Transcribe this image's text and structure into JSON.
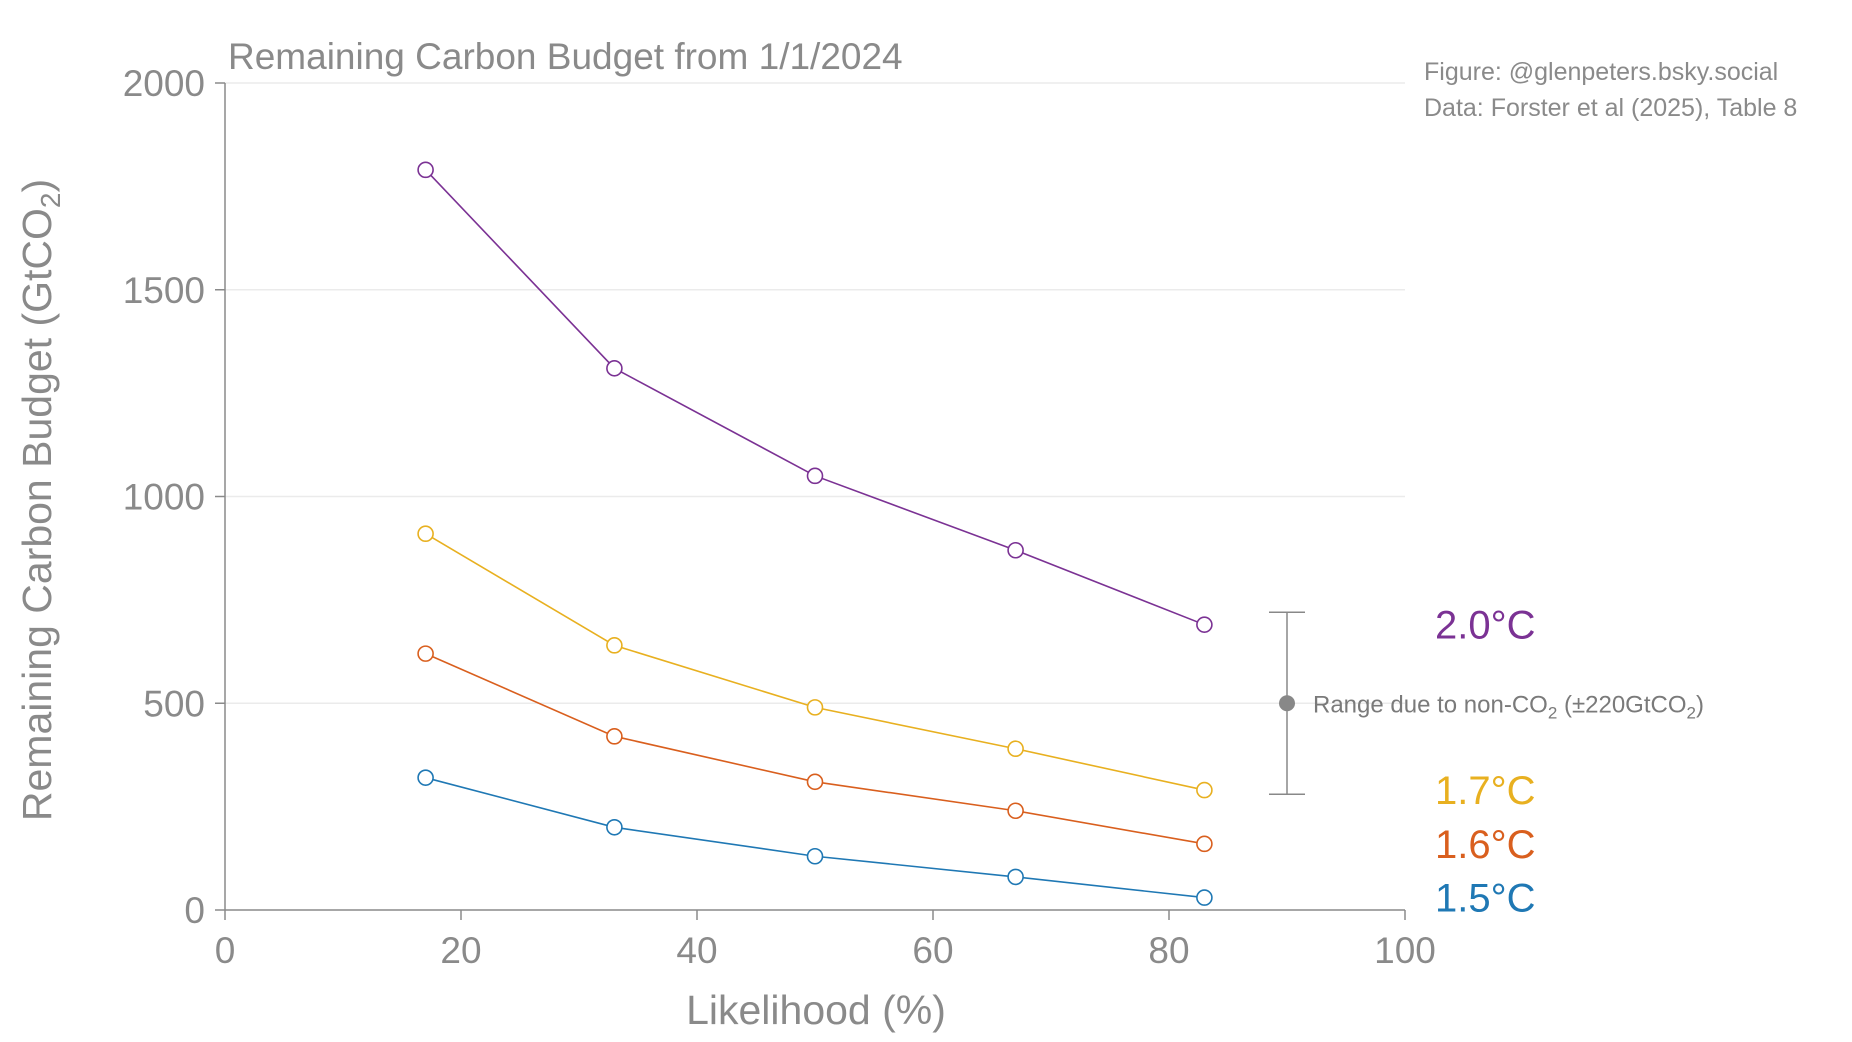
{
  "credits": {
    "figure": "Figure: @glenpeters.bsky.social",
    "data": "Data: Forster et al (2025), Table 8"
  },
  "chart_data": {
    "type": "line",
    "title": "Remaining Carbon Budget from 1/1/2024",
    "xlabel": "Likelihood (%)",
    "ylabel": {
      "main": "Remaining Carbon Budget (GtCO",
      "sub": "2",
      "close": ")"
    },
    "xlim": [
      0,
      100
    ],
    "ylim": [
      0,
      2000
    ],
    "xticks": [
      0,
      20,
      40,
      60,
      80,
      100
    ],
    "yticks": [
      0,
      500,
      1000,
      1500,
      2000
    ],
    "grid": "horizontal",
    "marker": "open-circle",
    "x": [
      17,
      33,
      50,
      67,
      83
    ],
    "series": [
      {
        "name": "2.0°C",
        "color": "#7b3294",
        "values": [
          1790,
          1310,
          1050,
          870,
          690
        ]
      },
      {
        "name": "1.7°C",
        "color": "#e8b020",
        "values": [
          910,
          640,
          490,
          390,
          290
        ]
      },
      {
        "name": "1.6°C",
        "color": "#d95f1e",
        "values": [
          620,
          420,
          310,
          240,
          160
        ]
      },
      {
        "name": "1.5°C",
        "color": "#1f78b4",
        "values": [
          320,
          200,
          130,
          80,
          30
        ]
      }
    ],
    "annotation": {
      "x": 90,
      "center": 500,
      "low": 280,
      "high": 720,
      "color": "#888888",
      "label_main": "Range due to non-CO",
      "label_sub": "2",
      "label_mid": " (±220GtCO",
      "label_sub2": "2",
      "label_end": ")"
    }
  }
}
